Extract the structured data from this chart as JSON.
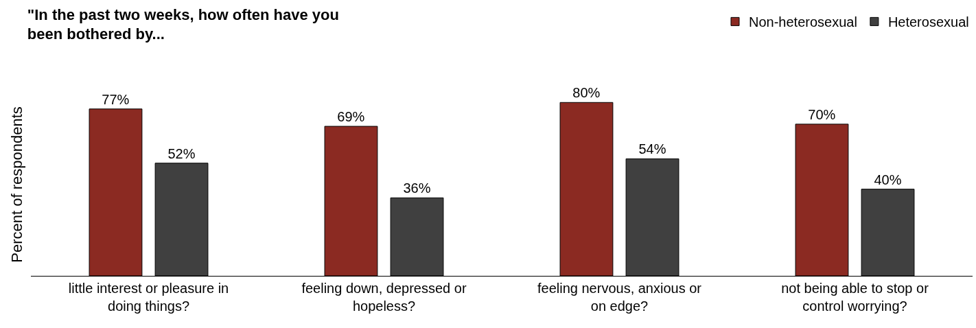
{
  "chart_data": {
    "type": "bar",
    "title": "\"In the past two weeks, how often have you\nbeen bothered by...",
    "ylabel": "Percent of respondents",
    "categories": [
      "little interest or pleasure in\ndoing things?",
      "feeling down, depressed or\nhopeless?",
      "feeling nervous, anxious or\non edge?",
      "not being able to stop or\ncontrol worrying?"
    ],
    "series": [
      {
        "name": "Non-heterosexual",
        "color": "#8b2a22",
        "values": [
          77,
          69,
          80,
          70
        ],
        "value_labels": [
          "77%",
          "69%",
          "80%",
          "70%"
        ]
      },
      {
        "name": "Heterosexual",
        "color": "#404040",
        "values": [
          52,
          36,
          54,
          40
        ],
        "value_labels": [
          "52%",
          "36%",
          "54%",
          "40%"
        ]
      }
    ],
    "tick_labels": "x",
    "legend": "top right"
  }
}
